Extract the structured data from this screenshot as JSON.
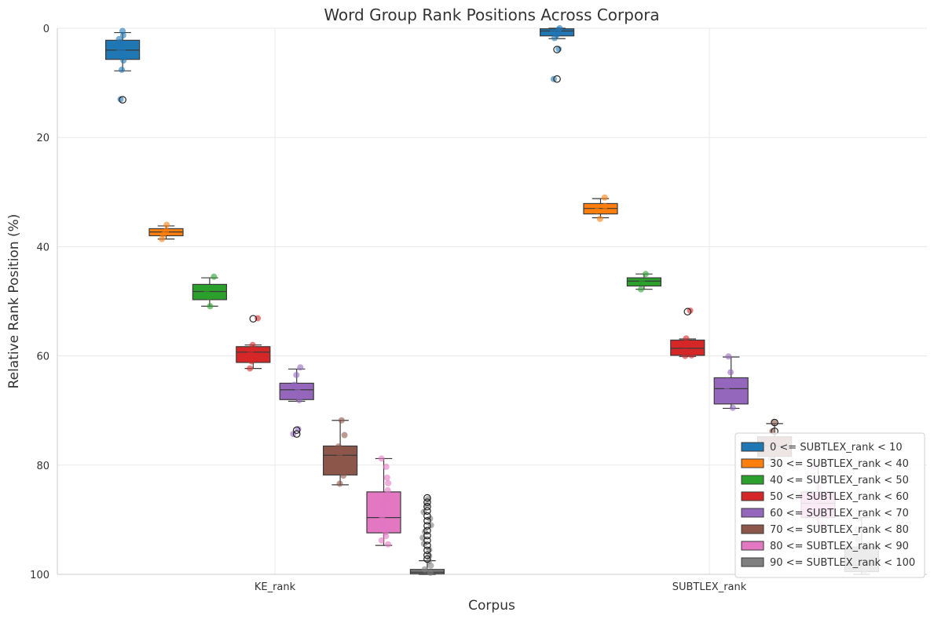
{
  "chart_data": {
    "type": "box",
    "title": "Word Group Rank Positions Across Corpora",
    "xlabel": "Corpus",
    "ylabel": "Relative Rank Position (%)",
    "ylim": [
      100,
      0
    ],
    "y_inverted": true,
    "yticks": [
      "0",
      "20",
      "40",
      "60",
      "80",
      "100"
    ],
    "categories": [
      "KE_rank",
      "SUBTLEX_rank"
    ],
    "grid": true,
    "legend_position": "bottom-right",
    "series": [
      {
        "name": "0 <= SUBTLEX_rank < 10",
        "color": "#1f77b4",
        "boxes": [
          {
            "whisker_low": 0.8,
            "q1": 2.2,
            "median": 4.0,
            "q3": 5.7,
            "whisker_high": 7.8,
            "outliers": [
              13.1
            ],
            "points": [
              0.5,
              1.3,
              2.0,
              2.6,
              3.3,
              3.9,
              4.4,
              5.1,
              5.9,
              7.6,
              13.0
            ]
          },
          {
            "whisker_low": 0.0,
            "q1": 0.1,
            "median": 0.5,
            "q3": 1.4,
            "whisker_high": 1.9,
            "outliers": [
              3.9,
              9.3
            ],
            "points": [
              0.0,
              0.3,
              0.7,
              1.2,
              1.8,
              3.8,
              9.3
            ]
          }
        ]
      },
      {
        "name": "30 <= SUBTLEX_rank < 40",
        "color": "#ff7f0e",
        "boxes": [
          {
            "whisker_low": 36.2,
            "q1": 36.7,
            "median": 37.3,
            "q3": 38.0,
            "whisker_high": 38.6,
            "outliers": [],
            "points": [
              36.0,
              37.1,
              37.8,
              38.6
            ]
          },
          {
            "whisker_low": 31.2,
            "q1": 32.1,
            "median": 33.0,
            "q3": 34.0,
            "whisker_high": 34.7,
            "outliers": [],
            "points": [
              31.0,
              32.6,
              33.4,
              34.9
            ]
          }
        ]
      },
      {
        "name": "40 <= SUBTLEX_rank < 50",
        "color": "#2ca02c",
        "boxes": [
          {
            "whisker_low": 45.7,
            "q1": 46.9,
            "median": 48.2,
            "q3": 49.7,
            "whisker_high": 50.9,
            "outliers": [],
            "points": [
              45.5,
              48.0,
              49.2,
              50.9
            ]
          },
          {
            "whisker_low": 45.0,
            "q1": 45.7,
            "median": 46.3,
            "q3": 47.2,
            "whisker_high": 47.8,
            "outliers": [],
            "points": [
              45.0,
              46.4,
              47.8
            ]
          }
        ]
      },
      {
        "name": "50 <= SUBTLEX_rank < 60",
        "color": "#d62728",
        "boxes": [
          {
            "whisker_low": 58.0,
            "q1": 58.3,
            "median": 59.3,
            "q3": 61.2,
            "whisker_high": 62.3,
            "outliers": [
              53.2
            ],
            "points": [
              53.1,
              58.0,
              59.2,
              60.0,
              61.0,
              62.3
            ]
          },
          {
            "whisker_low": 56.9,
            "q1": 57.1,
            "median": 58.6,
            "q3": 59.9,
            "whisker_high": 60.1,
            "outliers": [
              51.9
            ],
            "points": [
              51.7,
              56.8,
              58.0,
              59.2,
              59.9,
              60.0
            ]
          }
        ]
      },
      {
        "name": "60 <= SUBTLEX_rank < 70",
        "color": "#9467bd",
        "boxes": [
          {
            "whisker_low": 62.4,
            "q1": 65.0,
            "median": 66.2,
            "q3": 68.0,
            "whisker_high": 68.3,
            "outliers": [
              73.6,
              74.3
            ],
            "points": [
              62.1,
              63.5,
              65.3,
              66.4,
              67.2,
              68.1,
              73.4,
              74.3
            ]
          },
          {
            "whisker_low": 60.2,
            "q1": 64.0,
            "median": 66.0,
            "q3": 68.8,
            "whisker_high": 69.6,
            "outliers": [],
            "points": [
              60.1,
              63.0,
              64.6,
              66.3,
              68.0,
              69.5
            ]
          }
        ]
      },
      {
        "name": "70 <= SUBTLEX_rank < 80",
        "color": "#8c564b",
        "boxes": [
          {
            "whisker_low": 71.8,
            "q1": 76.5,
            "median": 78.2,
            "q3": 81.8,
            "whisker_high": 83.6,
            "outliers": [],
            "points": [
              71.8,
              74.5,
              76.6,
              78.0,
              79.3,
              80.6,
              81.9,
              83.4
            ]
          },
          {
            "whisker_low": 72.4,
            "q1": 74.8,
            "median": 76.5,
            "q3": 78.4,
            "whisker_high": 80.0,
            "outliers": [
              72.2,
              73.8
            ],
            "points": [
              72.1,
              73.8,
              75.6,
              77.2,
              78.8
            ]
          }
        ]
      },
      {
        "name": "80 <= SUBTLEX_rank < 90",
        "color": "#e377c2",
        "boxes": [
          {
            "whisker_low": 78.8,
            "q1": 84.9,
            "median": 89.6,
            "q3": 92.4,
            "whisker_high": 94.7,
            "outliers": [],
            "points": [
              78.8,
              80.3,
              82.3,
              83.3,
              84.6,
              85.5,
              86.4,
              87.2,
              88.0,
              88.8,
              89.5,
              90.2,
              90.9,
              91.6,
              92.3,
              93.0,
              93.8,
              94.5
            ]
          },
          {
            "whisker_low": 80.0,
            "q1": 84.9,
            "median": 87.0,
            "q3": 89.6,
            "whisker_high": 91.2,
            "outliers": [],
            "points": [
              80.4,
              82.5,
              84.1,
              85.6,
              87.0,
              88.3,
              89.6,
              90.8
            ]
          }
        ]
      },
      {
        "name": "90 <= SUBTLEX_rank < 100",
        "color": "#7f7f7f",
        "boxes": [
          {
            "whisker_low": 97.5,
            "q1": 99.1,
            "median": 99.6,
            "q3": 99.9,
            "whisker_high": 100.0,
            "outliers": [
              86.0,
              86.8,
              87.6,
              88.4,
              89.3,
              90.2,
              91.1,
              92.0,
              92.9,
              93.8,
              94.7,
              95.6,
              96.5,
              97.2
            ],
            "points": [
              86.2,
              87.3,
              88.6,
              89.8,
              91.0,
              92.2,
              93.3,
              94.4,
              95.5,
              96.6,
              97.6,
              98.4,
              99.1,
              99.7
            ]
          },
          {
            "whisker_low": 89.6,
            "q1": 95.0,
            "median": 98.3,
            "q3": 99.5,
            "whisker_high": 100.0,
            "outliers": [],
            "points": [
              89.8,
              91.8,
              93.6,
              95.3,
              96.9,
              98.2,
              99.3
            ]
          }
        ]
      }
    ],
    "legend": [
      "0 <= SUBTLEX_rank < 10",
      "30 <= SUBTLEX_rank < 40",
      "40 <= SUBTLEX_rank < 50",
      "50 <= SUBTLEX_rank < 60",
      "60 <= SUBTLEX_rank < 70",
      "70 <= SUBTLEX_rank < 80",
      "80 <= SUBTLEX_rank < 90",
      "90 <= SUBTLEX_rank < 100"
    ]
  }
}
